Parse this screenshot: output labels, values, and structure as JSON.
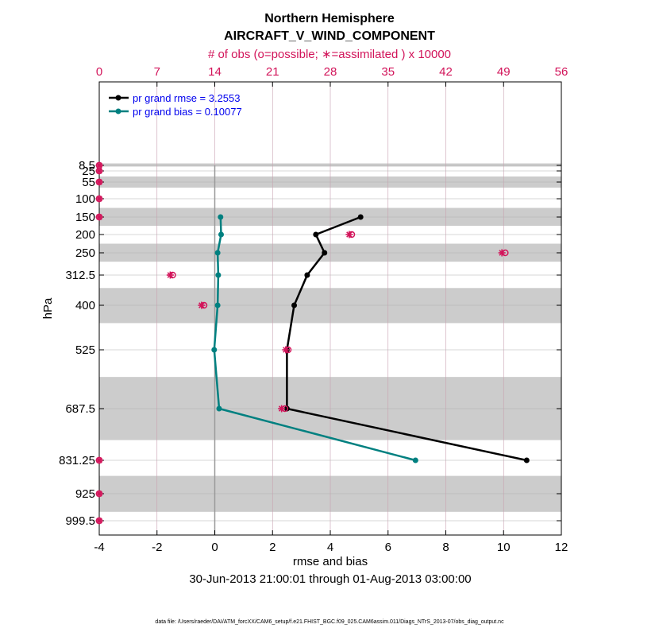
{
  "chart_data": {
    "type": "line",
    "title": "Northern Hemisphere",
    "subtitle": "AIRCRAFT_V_WIND_COMPONENT",
    "top_axis_label": "# of obs (o=possible; ∗=assimilated ) x 10000",
    "xlabel": "rmse and bias",
    "ylabel": "hPa",
    "date_range": "30-Jun-2013 21:00:01 through 01-Aug-2013 03:00:00",
    "footer": "data file: /Users/raeder/DAI/ATM_forcXX/CAM6_setup/f.e21.FHIST_BGC.f09_025.CAM6assim.011/Diags_NTrS_2013-07/obs_diag_output.nc",
    "xlim": [
      -4,
      12
    ],
    "x_ticks": [
      -4,
      -2,
      0,
      2,
      4,
      6,
      8,
      10,
      12
    ],
    "top_lim": [
      0,
      56
    ],
    "top_ticks": [
      0,
      7,
      14,
      21,
      28,
      35,
      42,
      49,
      56
    ],
    "levels": [
      8.5,
      25,
      55,
      100,
      150,
      200,
      250,
      312.5,
      400,
      525,
      687.5,
      831.25,
      925,
      999.5
    ],
    "level_labels": [
      "8.5",
      "25",
      "55",
      "100",
      "150",
      "200",
      "250",
      "312.5",
      "400",
      "525",
      "687.5",
      "831.25",
      "925",
      "999.5"
    ],
    "shaded_bands": [
      [
        5,
        12
      ],
      [
        40,
        70
      ],
      [
        125,
        175
      ],
      [
        225,
        275
      ],
      [
        350,
        450
      ],
      [
        600,
        775
      ],
      [
        875,
        975
      ]
    ],
    "series": [
      {
        "name": "rmse",
        "legend": "pr grand rmse = 3.2553",
        "color": "#000000",
        "levels": [
          150,
          200,
          250,
          312.5,
          400,
          525,
          687.5,
          831.25
        ],
        "values": [
          5.05,
          3.5,
          3.8,
          3.2,
          2.75,
          2.5,
          2.5,
          10.8
        ]
      },
      {
        "name": "bias",
        "legend": "pr grand bias = 0.10077",
        "color": "#008080",
        "levels": [
          150,
          200,
          250,
          312.5,
          400,
          525,
          687.5,
          831.25
        ],
        "values": [
          0.2,
          0.22,
          0.1,
          0.12,
          0.1,
          -0.02,
          0.15,
          6.95
        ]
      }
    ],
    "obs_counts": {
      "color": "#d2145a",
      "levels": [
        8.5,
        25,
        55,
        100,
        150,
        200,
        250,
        312.5,
        400,
        525,
        687.5,
        831.25,
        925,
        999.5
      ],
      "possible": [
        0,
        0,
        0,
        0,
        0,
        30.6,
        49.2,
        8.9,
        12.7,
        22.9,
        22.5,
        0,
        0,
        0
      ],
      "assimilated": [
        0,
        0,
        0,
        0,
        0,
        30.3,
        48.8,
        8.6,
        12.4,
        22.6,
        22.1,
        0,
        0,
        0
      ]
    }
  }
}
